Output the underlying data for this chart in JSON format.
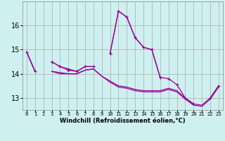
{
  "xlabel": "Windchill (Refroidissement éolien,°C)",
  "hours": [
    0,
    1,
    2,
    3,
    4,
    5,
    6,
    7,
    8,
    9,
    10,
    11,
    12,
    13,
    14,
    15,
    16,
    17,
    18,
    19,
    20,
    21,
    22,
    23
  ],
  "line1": [
    14.9,
    14.1,
    null,
    14.5,
    14.3,
    14.2,
    14.1,
    14.3,
    14.3,
    null,
    14.85,
    16.6,
    16.35,
    15.5,
    15.1,
    15.0,
    13.85,
    13.8,
    13.55,
    13.0,
    12.75,
    null,
    13.0,
    13.5
  ],
  "line2": [
    null,
    null,
    null,
    14.5,
    14.3,
    14.15,
    14.1,
    14.3,
    14.3,
    null,
    14.85,
    16.6,
    16.35,
    15.5,
    15.1,
    15.0,
    13.85,
    null,
    null,
    null,
    null,
    null,
    null,
    null
  ],
  "line3": [
    14.9,
    14.1,
    null,
    14.1,
    14.0,
    14.0,
    14.0,
    14.15,
    14.2,
    13.9,
    13.7,
    13.5,
    13.45,
    13.35,
    13.3,
    13.3,
    13.3,
    13.4,
    13.3,
    13.0,
    12.75,
    12.7,
    13.0,
    13.5
  ],
  "line4": [
    14.9,
    14.1,
    null,
    14.1,
    14.05,
    14.0,
    14.0,
    14.15,
    14.2,
    13.9,
    13.65,
    13.45,
    13.4,
    13.3,
    13.25,
    13.25,
    13.25,
    13.35,
    13.25,
    12.95,
    12.7,
    12.65,
    12.95,
    13.45
  ],
  "line_color": "#990099",
  "bg_color": "#cff0f0",
  "grid_color": "#aaaaaa",
  "ylim": [
    12.5,
    17.0
  ],
  "yticks": [
    13,
    14,
    15,
    16
  ]
}
